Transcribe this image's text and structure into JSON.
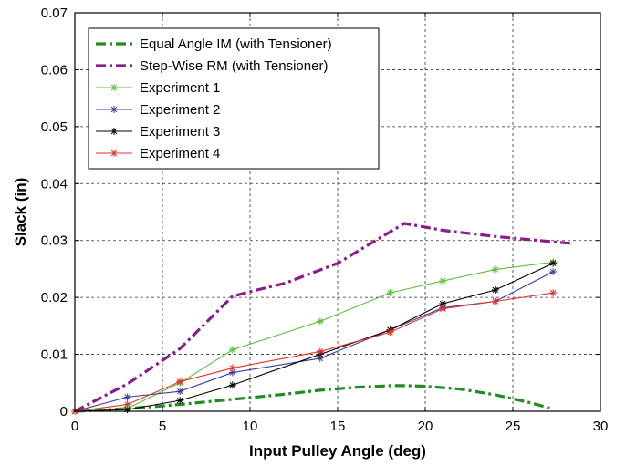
{
  "chart_data": {
    "type": "line",
    "xlabel": "Input Pulley Angle (deg)",
    "ylabel": "Slack (in)",
    "xlim": [
      0,
      30
    ],
    "ylim": [
      0,
      0.07
    ],
    "x_ticks": [
      "0",
      "5",
      "10",
      "15",
      "20",
      "25",
      "30"
    ],
    "y_ticks": [
      "0",
      "0.01",
      "0.02",
      "0.03",
      "0.04",
      "0.05",
      "0.06",
      "0.07"
    ],
    "grid": true,
    "legend_position": "top-left",
    "series": [
      {
        "name": "Equal Angle IM (with Tensioner)",
        "color": "#228B22",
        "style": "dash-dot-thick",
        "x": [
          0,
          2,
          4,
          6,
          8,
          10,
          12,
          14,
          16,
          18,
          19,
          20,
          22,
          24,
          26,
          27.3
        ],
        "y": [
          0,
          0.0003,
          0.0007,
          0.0012,
          0.0018,
          0.0024,
          0.003,
          0.0037,
          0.0042,
          0.0045,
          0.0045,
          0.0044,
          0.0039,
          0.0029,
          0.0015,
          0.0004
        ]
      },
      {
        "name": "Step-Wise RM (with Tensioner)",
        "color": "#8B1A8B",
        "style": "dash-dot-thick",
        "x": [
          0,
          3,
          6,
          9,
          10,
          12,
          15,
          18.8,
          21,
          24,
          28.3
        ],
        "y": [
          0,
          0.0048,
          0.011,
          0.0202,
          0.021,
          0.0225,
          0.026,
          0.033,
          0.0318,
          0.0307,
          0.0295
        ]
      },
      {
        "name": "Experiment 1",
        "color": "#5CBF3A",
        "style": "solid-star",
        "x": [
          0,
          3,
          6,
          9,
          14,
          18,
          21,
          24,
          27.3
        ],
        "y": [
          0,
          0.0005,
          0.005,
          0.0108,
          0.0158,
          0.0208,
          0.0229,
          0.0249,
          0.0262
        ]
      },
      {
        "name": "Experiment 2",
        "color": "#3C3C9E",
        "style": "solid-star",
        "x": [
          0,
          3,
          6,
          9,
          14,
          18,
          21,
          24,
          27.3
        ],
        "y": [
          0,
          0.0025,
          0.0035,
          0.0068,
          0.0093,
          0.0143,
          0.0182,
          0.0193,
          0.0245
        ]
      },
      {
        "name": "Experiment 3",
        "color": "#000000",
        "style": "solid-star",
        "x": [
          0,
          3,
          6,
          9,
          14,
          18,
          21,
          24,
          27.3
        ],
        "y": [
          0,
          0.0003,
          0.0019,
          0.0046,
          0.01,
          0.0143,
          0.0189,
          0.0213,
          0.026
        ]
      },
      {
        "name": "Experiment 4",
        "color": "#E8312A",
        "style": "solid-star",
        "x": [
          0,
          3,
          6,
          9,
          14,
          18,
          21,
          24,
          27.3
        ],
        "y": [
          0,
          0.0012,
          0.0052,
          0.0076,
          0.0105,
          0.0139,
          0.018,
          0.0193,
          0.0208
        ]
      }
    ]
  }
}
